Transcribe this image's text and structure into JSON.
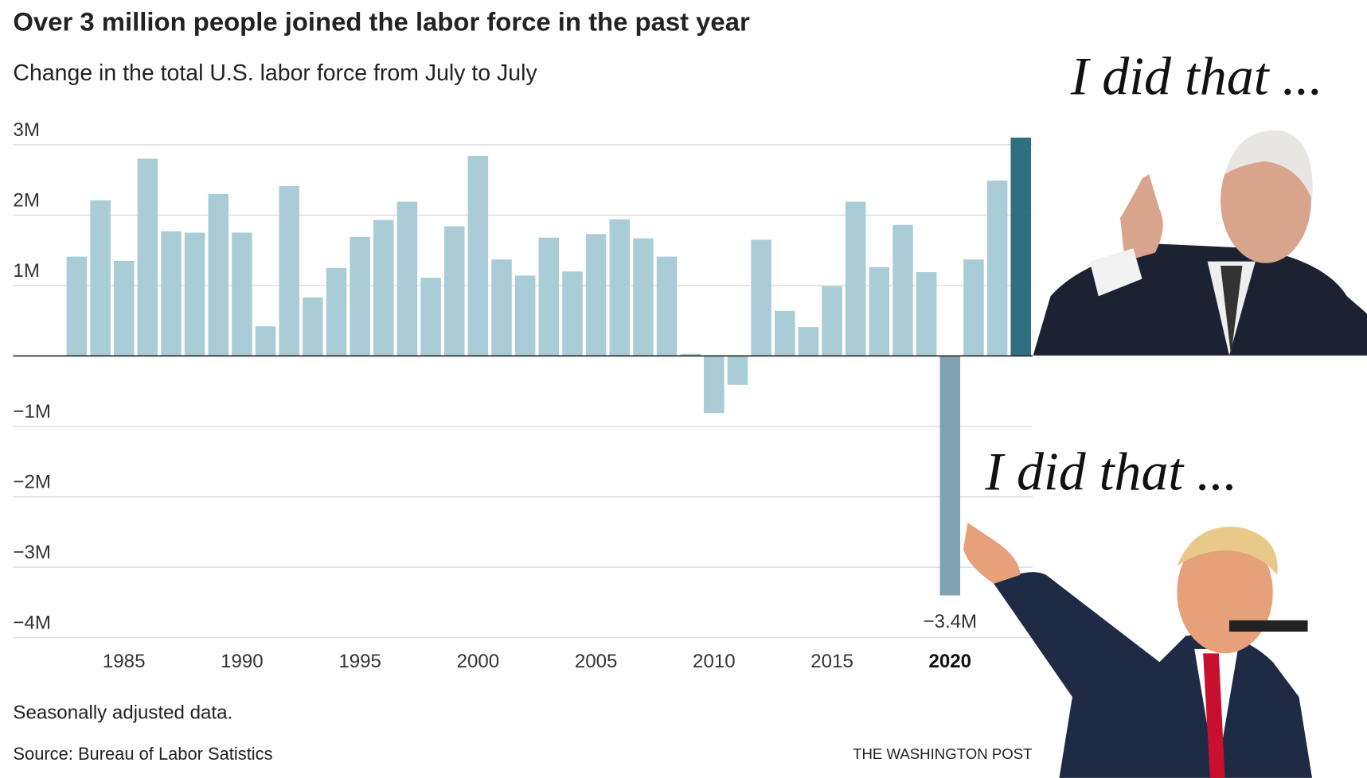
{
  "chart_data": {
    "type": "bar",
    "title": "Over 3 million people joined the labor force in the past year",
    "subtitle": "Change in the total U.S. labor force from July to July",
    "x": [
      1983,
      1984,
      1985,
      1986,
      1987,
      1988,
      1989,
      1990,
      1991,
      1992,
      1993,
      1994,
      1995,
      1996,
      1997,
      1998,
      1999,
      2000,
      2001,
      2002,
      2003,
      2004,
      2005,
      2006,
      2007,
      2008,
      2009,
      2010,
      2011,
      2012,
      2013,
      2014,
      2015,
      2016,
      2017,
      2018,
      2019,
      2020,
      2021,
      2022,
      2023
    ],
    "values": [
      1.41,
      2.21,
      1.35,
      2.8,
      1.77,
      1.75,
      2.3,
      1.75,
      0.42,
      2.41,
      0.83,
      1.25,
      1.69,
      1.93,
      2.19,
      1.11,
      1.84,
      2.84,
      1.37,
      1.14,
      1.68,
      1.2,
      1.73,
      1.94,
      1.67,
      1.41,
      0.03,
      -0.81,
      -0.41,
      1.65,
      0.64,
      0.41,
      0.99,
      2.19,
      1.26,
      1.86,
      1.19,
      -3.4,
      1.37,
      2.49,
      3.1
    ],
    "value_labels": [
      null,
      null,
      null,
      null,
      null,
      null,
      null,
      null,
      null,
      null,
      null,
      null,
      null,
      null,
      null,
      null,
      null,
      null,
      null,
      null,
      null,
      null,
      null,
      null,
      null,
      null,
      null,
      null,
      null,
      null,
      null,
      null,
      null,
      null,
      null,
      null,
      null,
      "−3.4M",
      null,
      null,
      null
    ],
    "colors": [
      "#a9ccd6",
      "#a9ccd6",
      "#a9ccd6",
      "#a9ccd6",
      "#a9ccd6",
      "#a9ccd6",
      "#a9ccd6",
      "#a9ccd6",
      "#a9ccd6",
      "#a9ccd6",
      "#a9ccd6",
      "#a9ccd6",
      "#a9ccd6",
      "#a9ccd6",
      "#a9ccd6",
      "#a9ccd6",
      "#a9ccd6",
      "#a9ccd6",
      "#a9ccd6",
      "#a9ccd6",
      "#a9ccd6",
      "#a9ccd6",
      "#a9ccd6",
      "#a9ccd6",
      "#a9ccd6",
      "#a9ccd6",
      "#a9ccd6",
      "#a9ccd6",
      "#a9ccd6",
      "#a9ccd6",
      "#a9ccd6",
      "#a9ccd6",
      "#a9ccd6",
      "#a9ccd6",
      "#a9ccd6",
      "#a9ccd6",
      "#a9ccd6",
      "#7fa3b0",
      "#a9ccd6",
      "#a9ccd6",
      "#2f6f80"
    ],
    "xlim": [
      1982.5,
      2023.5
    ],
    "xticks": [
      1985,
      1990,
      1995,
      2000,
      2005,
      2010,
      2015,
      2020
    ],
    "ylim": [
      -4,
      3.2
    ],
    "yticks": [
      {
        "value": 3,
        "label": "3M"
      },
      {
        "value": 2,
        "label": "2M"
      },
      {
        "value": 1,
        "label": "1M"
      },
      {
        "value": -1,
        "label": "−1M"
      },
      {
        "value": -2,
        "label": "−2M"
      },
      {
        "value": -3,
        "label": "−3M"
      },
      {
        "value": -4,
        "label": "−4M"
      }
    ],
    "grid": true,
    "note": "Seasonally adjusted data.",
    "source": "Source: Bureau of Labor Satistics",
    "credit": "THE WASHINGTON POST",
    "annotations": [
      "I did that ...",
      "I did that ..."
    ]
  }
}
